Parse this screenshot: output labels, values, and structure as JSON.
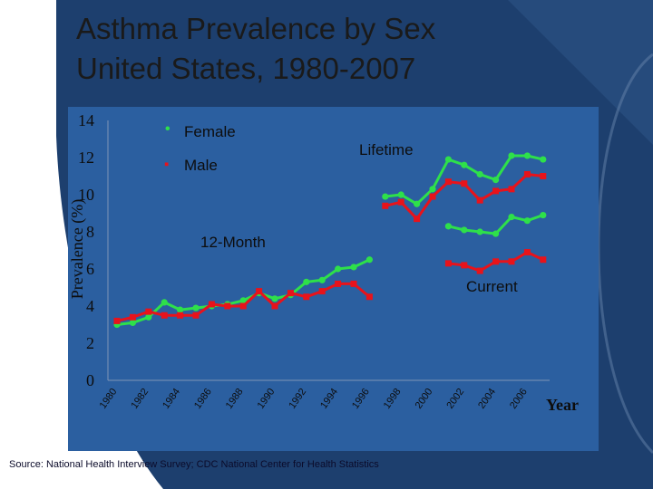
{
  "slide": {
    "title_line1": "Asthma Prevalence by Sex",
    "title_line2": "United States, 1980-2007",
    "source": "Source:   National Health Interview Survey; CDC National Center for Health Statistics"
  },
  "colors": {
    "female": "#2ee04a",
    "male": "#e8131b",
    "axis_text": "#0d0d0d",
    "label_text": "#0d0d0d"
  },
  "chart_data": {
    "type": "line",
    "title": "Asthma Prevalence by Sex United States, 1980-2007",
    "xlabel": "Year",
    "ylabel": "Prevalence (%)",
    "ylim": [
      0,
      14
    ],
    "yticks": [
      0,
      2,
      4,
      6,
      8,
      10,
      12,
      14
    ],
    "xlim": [
      1980,
      2007
    ],
    "xticks": [
      "1980",
      "1982",
      "1984",
      "1986",
      "1988",
      "1990",
      "1992",
      "1994",
      "1996",
      "1998",
      "2000",
      "2002",
      "2004",
      "2006"
    ],
    "legend": [
      {
        "name": "Female",
        "marker": "•",
        "color": "#2ee04a"
      },
      {
        "name": "Male",
        "marker": "▪",
        "color": "#e8131b"
      }
    ],
    "annotations": [
      "Lifetime",
      "12-Month",
      "Current"
    ],
    "series": [
      {
        "name": "Female 12-Month",
        "group": "Female",
        "x": [
          1980,
          1981,
          1982,
          1983,
          1984,
          1985,
          1986,
          1987,
          1988,
          1989,
          1990,
          1991,
          1992,
          1993,
          1994,
          1995,
          1996
        ],
        "values": [
          3.0,
          3.1,
          3.4,
          4.2,
          3.8,
          3.9,
          4.0,
          4.1,
          4.3,
          4.7,
          4.4,
          4.6,
          5.3,
          5.4,
          6.0,
          6.1,
          6.5
        ]
      },
      {
        "name": "Male 12-Month",
        "group": "Male",
        "x": [
          1980,
          1981,
          1982,
          1983,
          1984,
          1985,
          1986,
          1987,
          1988,
          1989,
          1990,
          1991,
          1992,
          1993,
          1994,
          1995,
          1996
        ],
        "values": [
          3.2,
          3.4,
          3.7,
          3.5,
          3.5,
          3.5,
          4.1,
          4.0,
          4.0,
          4.8,
          4.0,
          4.7,
          4.5,
          4.8,
          5.2,
          5.2,
          4.5
        ]
      },
      {
        "name": "Female Lifetime",
        "group": "Female",
        "x": [
          1997,
          1998,
          1999,
          2000,
          2001,
          2002,
          2003,
          2004,
          2005,
          2006,
          2007
        ],
        "values": [
          9.9,
          10.0,
          9.5,
          10.3,
          11.9,
          11.6,
          11.1,
          10.8,
          12.1,
          12.1,
          11.9
        ]
      },
      {
        "name": "Male Lifetime",
        "group": "Male",
        "x": [
          1997,
          1998,
          1999,
          2000,
          2001,
          2002,
          2003,
          2004,
          2005,
          2006,
          2007
        ],
        "values": [
          9.4,
          9.6,
          8.7,
          9.9,
          10.7,
          10.6,
          9.7,
          10.2,
          10.3,
          11.1,
          11.0
        ]
      },
      {
        "name": "Female Current",
        "group": "Female",
        "x": [
          2001,
          2002,
          2003,
          2004,
          2005,
          2006,
          2007
        ],
        "values": [
          8.3,
          8.1,
          8.0,
          7.9,
          8.8,
          8.6,
          8.9
        ]
      },
      {
        "name": "Male Current",
        "group": "Male",
        "x": [
          2001,
          2002,
          2003,
          2004,
          2005,
          2006,
          2007
        ],
        "values": [
          6.3,
          6.2,
          5.9,
          6.4,
          6.4,
          6.9,
          6.5
        ]
      }
    ]
  }
}
